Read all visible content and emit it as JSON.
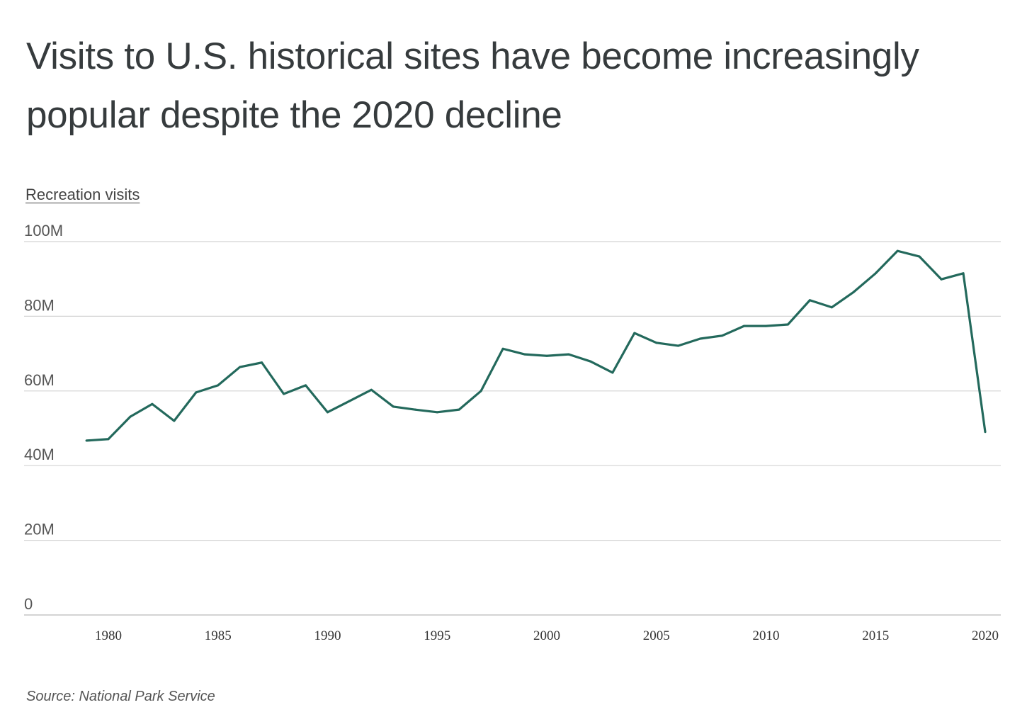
{
  "chart_data": {
    "type": "line",
    "title": "Visits to U.S. historical sites have become increasingly popular despite the 2020 decline",
    "ylabel": "Recreation visits",
    "xlabel": "",
    "source": "Source:  National Park Service",
    "ylim": [
      0,
      100000000
    ],
    "xlim": [
      1979,
      2020
    ],
    "grid": true,
    "line_color": "#23695c",
    "yticks": [
      {
        "value": 0,
        "label": "0"
      },
      {
        "value": 20000000,
        "label": "20M"
      },
      {
        "value": 40000000,
        "label": "40M"
      },
      {
        "value": 60000000,
        "label": "60M"
      },
      {
        "value": 80000000,
        "label": "80M"
      },
      {
        "value": 100000000,
        "label": "100M"
      }
    ],
    "xticks": [
      {
        "value": 1980,
        "label": "1980"
      },
      {
        "value": 1985,
        "label": "1985"
      },
      {
        "value": 1990,
        "label": "1990"
      },
      {
        "value": 1995,
        "label": "1995"
      },
      {
        "value": 2000,
        "label": "2000"
      },
      {
        "value": 2005,
        "label": "2005"
      },
      {
        "value": 2010,
        "label": "2010"
      },
      {
        "value": 2015,
        "label": "2015"
      },
      {
        "value": 2020,
        "label": "2020"
      }
    ],
    "x": [
      1979,
      1980,
      1981,
      1982,
      1983,
      1984,
      1985,
      1986,
      1987,
      1988,
      1989,
      1990,
      1991,
      1992,
      1993,
      1994,
      1995,
      1996,
      1997,
      1998,
      1999,
      2000,
      2001,
      2002,
      2003,
      2004,
      2005,
      2006,
      2007,
      2008,
      2009,
      2010,
      2011,
      2012,
      2013,
      2014,
      2015,
      2016,
      2017,
      2018,
      2019,
      2020
    ],
    "y": [
      46.7,
      47.1,
      53.1,
      56.5,
      52.0,
      59.6,
      61.5,
      66.4,
      67.6,
      59.2,
      61.5,
      54.3,
      57.3,
      60.3,
      55.8,
      55.0,
      54.3,
      55.0,
      60.0,
      71.3,
      69.8,
      69.4,
      69.8,
      67.9,
      64.9,
      75.5,
      72.9,
      72.1,
      74.0,
      74.8,
      77.4,
      77.4,
      77.8,
      84.3,
      82.4,
      86.5,
      91.5,
      97.5,
      96.0,
      89.9,
      91.5,
      49.0
    ],
    "y_unit": "millions of visits"
  }
}
